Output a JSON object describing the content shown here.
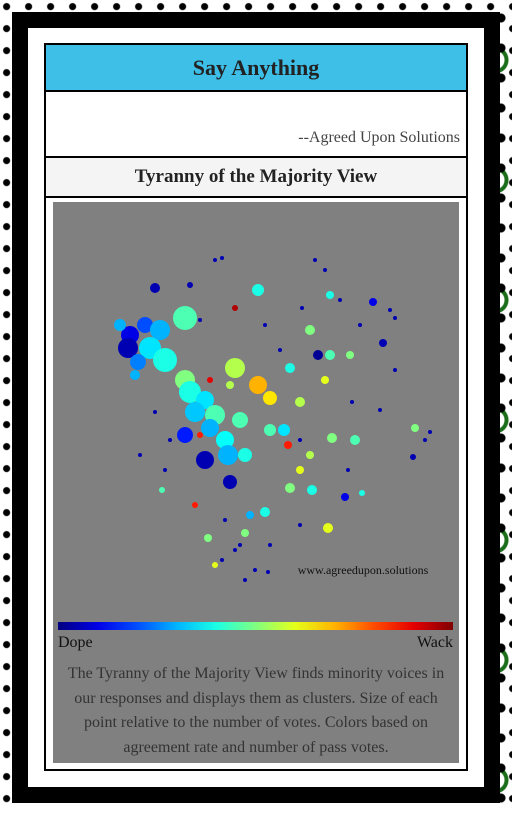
{
  "header": {
    "title": "Say Anything",
    "quote_attribution": "--Agreed Upon Solutions"
  },
  "section": {
    "title": "Tyranny of the Majority View"
  },
  "chart_data": {
    "type": "scatter",
    "x": [
      75,
      90,
      105,
      130,
      73,
      95,
      110,
      83,
      130,
      180,
      203,
      215,
      135,
      150,
      140,
      160,
      130,
      155,
      170,
      185,
      150,
      173,
      190,
      175,
      203,
      65,
      100,
      80,
      255,
      275,
      263,
      295,
      245,
      270,
      300,
      277,
      255,
      235,
      257,
      273,
      190,
      210,
      195,
      328,
      318,
      275,
      360,
      358,
      235,
      215,
      229,
      233,
      175,
      245,
      290,
      307,
      155,
      180,
      145,
      140,
      160,
      153,
      107,
      160,
      167,
      135,
      260,
      270,
      285,
      335,
      340,
      100,
      85,
      110,
      200,
      190,
      213,
      370,
      375,
      325,
      297,
      293,
      245,
      215,
      170,
      145,
      210,
      225,
      305,
      247,
      340,
      115,
      245,
      185,
      180,
      167
    ],
    "y": [
      270,
      280,
      275,
      287,
      257,
      257,
      245,
      243,
      225,
      237,
      220,
      207,
      213,
      205,
      193,
      190,
      170,
      177,
      165,
      185,
      145,
      150,
      150,
      123,
      315,
      280,
      317,
      230,
      275,
      250,
      250,
      250,
      203,
      225,
      165,
      167,
      150,
      117,
      115,
      77,
      72,
      93,
      90,
      262,
      303,
      310,
      177,
      148,
      237,
      175,
      175,
      160,
      220,
      135,
      108,
      112,
      225,
      297,
      170,
      100,
      40,
      67,
      115,
      345,
      347,
      320,
      345,
      335,
      305,
      295,
      287,
      193,
      150,
      135,
      35,
      25,
      33,
      165,
      173,
      195,
      203,
      135,
      80,
      60,
      85,
      285,
      280,
      255,
      280,
      297,
      235,
      165,
      165,
      60,
      55,
      45
    ],
    "sizes": [
      9,
      8,
      10,
      12,
      10,
      11,
      12,
      8,
      10,
      10,
      9,
      7,
      11,
      9,
      10,
      10,
      8,
      9,
      9,
      8,
      9,
      10,
      7,
      7,
      6,
      6,
      5,
      5,
      5,
      5,
      5,
      4,
      5,
      4,
      5,
      5,
      4,
      5,
      5,
      5,
      4,
      5,
      4,
      4,
      4,
      4,
      4,
      3,
      5,
      6,
      6,
      4,
      4,
      4,
      4,
      3,
      3,
      3,
      3,
      3,
      3,
      4,
      3,
      2,
      2,
      3,
      2,
      2,
      2,
      2,
      2,
      2,
      2,
      2,
      2,
      2,
      2,
      2,
      2,
      2,
      2,
      2,
      2,
      2,
      2,
      2,
      2,
      2,
      2,
      2,
      2,
      2,
      2,
      2,
      2,
      2
    ],
    "values": [
      0.1,
      0.2,
      0.3,
      0.45,
      0.05,
      0.35,
      0.4,
      0.25,
      0.5,
      0.55,
      0.7,
      0.65,
      0.4,
      0.35,
      0.32,
      0.45,
      0.15,
      0.3,
      0.38,
      0.45,
      0.05,
      0.3,
      0.4,
      0.05,
      0.4,
      0.3,
      0.05,
      0.3,
      0.5,
      0.45,
      0.02,
      0.5,
      0.55,
      0.6,
      0.45,
      0.5,
      0.55,
      0.5,
      0.4,
      0.6,
      0.5,
      0.4,
      0.3,
      0.05,
      0.1,
      0.4,
      0.5,
      0.05,
      0.4,
      0.45,
      0.35,
      0.85,
      0.55,
      0.6,
      0.1,
      0.4,
      0.9,
      0.95,
      0.85,
      0.85,
      0.6,
      0.5,
      0.45,
      0.05,
      0.05,
      0.05,
      0.05,
      0.05,
      0.05,
      0.05,
      0.05,
      0.05,
      0.05,
      0.05,
      0.05,
      0.05,
      0.05,
      0.05,
      0.05,
      0.05,
      0.05,
      0.05,
      0.05,
      0.05,
      0.05,
      0.05,
      0.05,
      0.05,
      0.05,
      0.05,
      0.05,
      0.05,
      0.05,
      0.05,
      0.05,
      0.05
    ],
    "colormap": "jet",
    "xlim": [
      0,
      400
    ],
    "ylim": [
      0,
      400
    ],
    "watermark": "www.agreedupon.solutions",
    "colorbar": {
      "low_label": "Dope",
      "high_label": "Wack"
    }
  },
  "description": "The Tyranny of the Majority View finds minority voices in our responses and displays them as clusters. Size of each point relative to the number of votes. Colors based on agreement rate and number of pass votes."
}
